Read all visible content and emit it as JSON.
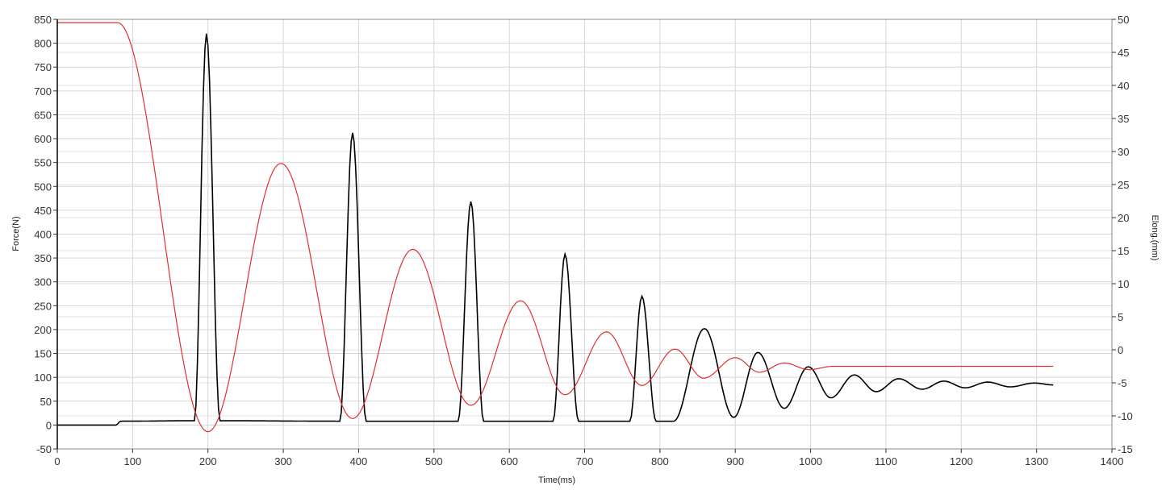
{
  "chart_data": {
    "type": "line",
    "title": "",
    "xlabel": "Time(ms)",
    "ylabel": "Force(N)",
    "y2label": "Elong.(mm)",
    "xlim": [
      0,
      1400
    ],
    "ylim": [
      -50,
      850
    ],
    "y2lim": [
      -15,
      50
    ],
    "xticks": [
      0,
      100,
      200,
      300,
      400,
      500,
      600,
      700,
      800,
      900,
      1000,
      1100,
      1200,
      1300,
      1400
    ],
    "yticks": [
      -50,
      0,
      50,
      100,
      150,
      200,
      250,
      300,
      350,
      400,
      450,
      500,
      550,
      600,
      650,
      700,
      750,
      800,
      850
    ],
    "y2ticks": [
      -15,
      -10,
      -5,
      0,
      5,
      10,
      15,
      20,
      25,
      30,
      35,
      40,
      45,
      50
    ],
    "grid": true,
    "legend": "none",
    "series": [
      {
        "axis": "left",
        "color": "#000000",
        "points": [
          [
            0,
            0
          ],
          [
            78,
            0
          ],
          [
            84,
            8
          ],
          [
            182,
            9
          ],
          [
            198,
            820
          ],
          [
            216,
            9
          ],
          [
            375,
            8
          ],
          [
            392,
            612
          ],
          [
            410,
            8
          ],
          [
            532,
            8
          ],
          [
            549,
            468
          ],
          [
            566,
            8
          ],
          [
            658,
            8
          ],
          [
            674,
            358
          ],
          [
            692,
            8
          ],
          [
            760,
            8
          ],
          [
            776,
            270
          ],
          [
            795,
            8
          ],
          [
            818,
            8
          ],
          [
            859,
            202
          ],
          [
            898,
            16
          ],
          [
            930,
            152
          ],
          [
            965,
            35
          ],
          [
            997,
            122
          ],
          [
            1027,
            57
          ],
          [
            1058,
            105
          ],
          [
            1087,
            70
          ],
          [
            1117,
            97
          ],
          [
            1148,
            75
          ],
          [
            1177,
            92
          ],
          [
            1205,
            78
          ],
          [
            1235,
            90
          ],
          [
            1265,
            80
          ],
          [
            1297,
            88
          ],
          [
            1322,
            84
          ]
        ]
      },
      {
        "axis": "right",
        "color": "#e03030",
        "points": [
          [
            0,
            49.5
          ],
          [
            80,
            49.5
          ],
          [
            200,
            -12.4
          ],
          [
            297,
            28.2
          ],
          [
            392,
            -10.4
          ],
          [
            472,
            15.2
          ],
          [
            549,
            -8.4
          ],
          [
            615,
            7.4
          ],
          [
            674,
            -6.8
          ],
          [
            729,
            2.7
          ],
          [
            776,
            -5.4
          ],
          [
            820,
            0.1
          ],
          [
            858,
            -4.3
          ],
          [
            900,
            -1.2
          ],
          [
            932,
            -3.4
          ],
          [
            965,
            -2.0
          ],
          [
            998,
            -3.0
          ],
          [
            1030,
            -2.5
          ],
          [
            1322,
            -2.5
          ]
        ]
      }
    ]
  }
}
